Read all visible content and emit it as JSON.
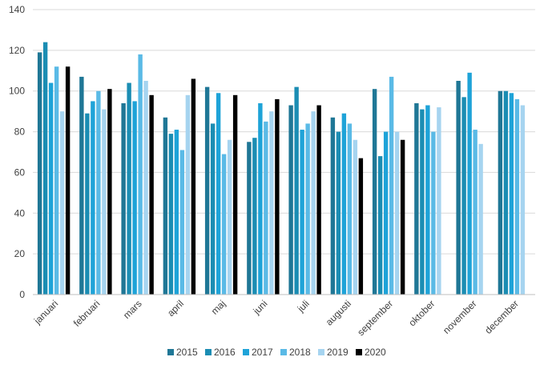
{
  "chart_data": {
    "type": "bar",
    "title": "",
    "xlabel": "",
    "ylabel": "",
    "ylim": [
      0,
      140
    ],
    "yticks": [
      0,
      20,
      40,
      60,
      80,
      100,
      120,
      140
    ],
    "grid": true,
    "legend_position": "bottom",
    "categories": [
      "januari",
      "februari",
      "mars",
      "april",
      "maj",
      "juni",
      "juli",
      "augusti",
      "september",
      "oktober",
      "november",
      "december"
    ],
    "series": [
      {
        "name": "2015",
        "color": "#1F7796",
        "values": [
          119,
          107,
          94,
          87,
          102,
          75,
          93,
          87,
          101,
          94,
          105,
          100
        ]
      },
      {
        "name": "2016",
        "color": "#1B8DB3",
        "values": [
          124,
          89,
          104,
          79,
          84,
          77,
          102,
          80,
          68,
          91,
          97,
          100
        ]
      },
      {
        "name": "2017",
        "color": "#1EA3D8",
        "values": [
          104,
          95,
          95,
          81,
          99,
          94,
          81,
          89,
          80,
          93,
          109,
          99
        ]
      },
      {
        "name": "2018",
        "color": "#5ABAE6",
        "values": [
          112,
          100,
          118,
          71,
          69,
          85,
          84,
          84,
          107,
          80,
          81,
          96
        ]
      },
      {
        "name": "2019",
        "color": "#A6D4F0",
        "values": [
          90,
          91,
          105,
          98,
          76,
          90,
          90,
          76,
          80,
          92,
          74,
          93
        ]
      },
      {
        "name": "2020",
        "color": "#000000",
        "values": [
          112,
          101,
          98,
          106,
          98,
          96,
          93,
          67,
          76,
          null,
          null,
          null
        ]
      }
    ]
  }
}
